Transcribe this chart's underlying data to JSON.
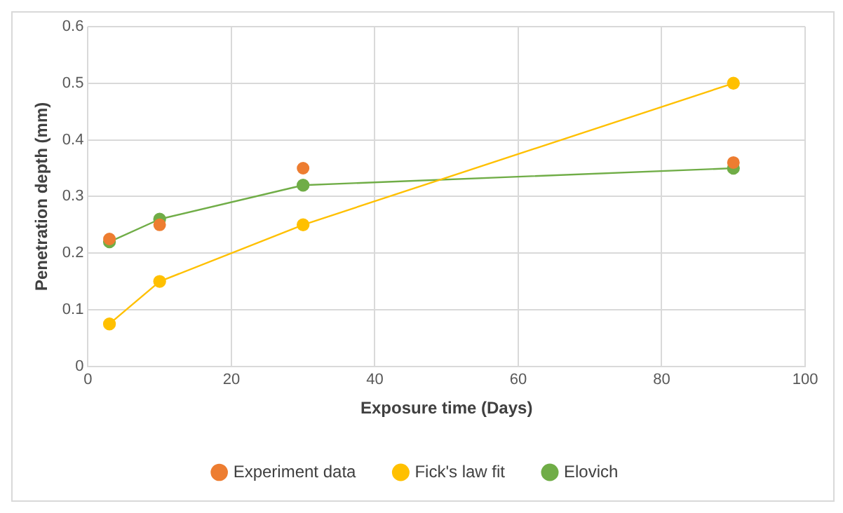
{
  "chart_data": {
    "type": "line",
    "xlabel": "Exposure time (Days)",
    "ylabel": "Penetration depth (mm)",
    "xlim": [
      0,
      100
    ],
    "xticks": [
      0,
      20,
      40,
      60,
      80,
      100
    ],
    "ylim": [
      0,
      0.6
    ],
    "yticks": [
      0,
      0.1,
      0.2,
      0.3,
      0.4,
      0.5,
      0.6
    ],
    "grid": true,
    "legend": "bottom",
    "marker": "circle",
    "x": [
      3,
      10,
      30,
      90
    ],
    "series": [
      {
        "name": "Experiment data",
        "type": "scatter",
        "color": "#ed7d31",
        "values": [
          0.225,
          0.25,
          0.35,
          0.36
        ]
      },
      {
        "name": "Fick's law fit",
        "type": "line",
        "color": "#ffc000",
        "values": [
          0.075,
          0.15,
          0.25,
          0.5
        ]
      },
      {
        "name": "Elovich",
        "type": "line",
        "color": "#70ad47",
        "values": [
          0.22,
          0.26,
          0.32,
          0.35
        ]
      }
    ]
  }
}
